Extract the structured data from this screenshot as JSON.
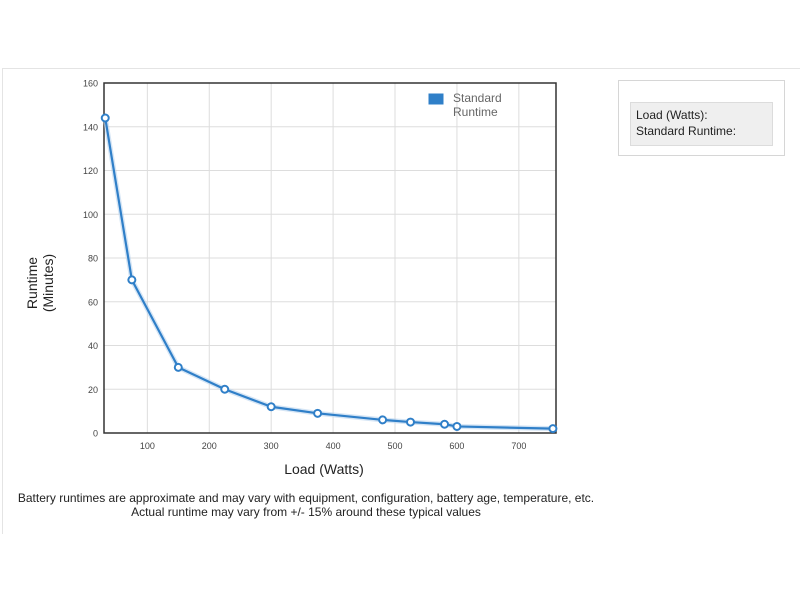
{
  "chart_data": {
    "type": "line",
    "title": "",
    "xlabel": "Load (Watts)",
    "ylabel_lines": [
      "Runtime",
      "(Minutes)"
    ],
    "xlim": [
      30,
      760
    ],
    "ylim": [
      0,
      160
    ],
    "x_ticks": [
      100,
      200,
      300,
      400,
      500,
      600,
      700
    ],
    "y_ticks": [
      0,
      20,
      40,
      60,
      80,
      100,
      120,
      140,
      160
    ],
    "grid": true,
    "legend_position": "top-right",
    "series": [
      {
        "name": "Standard Runtime",
        "name_lines": [
          "Standard",
          "Runtime"
        ],
        "color": "#2f7fc8",
        "x": [
          32,
          75,
          150,
          225,
          300,
          375,
          480,
          525,
          580,
          600,
          755
        ],
        "y": [
          144,
          70,
          30,
          20,
          12,
          9,
          6,
          5,
          4,
          3,
          2
        ]
      }
    ]
  },
  "info_box": {
    "load_label": "Load (Watts):",
    "runtime_label": "Standard Runtime:"
  },
  "notes": {
    "line1": "Battery runtimes are approximate and may vary with equipment, configuration, battery age, temperature, etc.",
    "line2": "Actual runtime may vary from +/- 15% around these typical values"
  }
}
